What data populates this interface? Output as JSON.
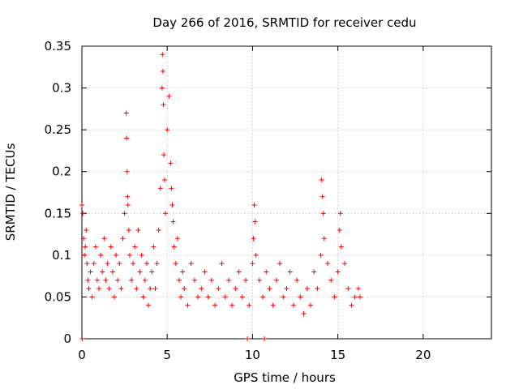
{
  "chart_data": {
    "type": "scatter",
    "title": "Day 266 of 2016, SRMTID for receiver cedu",
    "xlabel": "GPS time / hours",
    "ylabel": "SRMTID / TECUs",
    "xlim": [
      0,
      24
    ],
    "ylim": [
      0,
      0.35
    ],
    "x_ticks": [
      0,
      5,
      10,
      15,
      20
    ],
    "x_tick_labels": [
      "0",
      "5",
      "10",
      "15",
      "20"
    ],
    "y_ticks": [
      0,
      0.05,
      0.1,
      0.15,
      0.2,
      0.25,
      0.3,
      0.35
    ],
    "y_tick_labels": [
      "0",
      "0.05",
      "0.1",
      "0.15",
      "0.2",
      "0.25",
      "0.3",
      "0.35"
    ],
    "grid": true,
    "marker": "+",
    "series": [
      {
        "name": "SRMTID",
        "color": "#ff0000",
        "x": [
          0.0,
          0.05,
          0.1,
          0.15,
          0.2,
          0.25,
          0.3,
          0.35,
          0.4,
          0.5,
          0.6,
          0.7,
          0.8,
          0.9,
          1.0,
          1.1,
          1.2,
          1.3,
          1.4,
          1.5,
          1.6,
          1.7,
          1.8,
          1.9,
          2.0,
          2.1,
          2.2,
          2.3,
          2.4,
          2.5,
          2.6,
          2.62,
          2.65,
          2.68,
          2.7,
          2.75,
          2.8,
          2.9,
          3.0,
          3.1,
          3.2,
          3.3,
          3.4,
          3.5,
          3.6,
          3.7,
          3.8,
          3.9,
          4.0,
          4.1,
          4.2,
          4.3,
          4.4,
          4.5,
          4.6,
          4.7,
          4.72,
          4.75,
          4.78,
          4.8,
          4.85,
          4.9,
          5.0,
          5.1,
          5.2,
          5.25,
          5.3,
          5.35,
          5.4,
          5.5,
          5.6,
          5.7,
          5.8,
          5.9,
          6.0,
          6.2,
          6.4,
          6.6,
          6.8,
          7.0,
          7.2,
          7.4,
          7.6,
          7.8,
          8.0,
          8.2,
          8.4,
          8.6,
          8.8,
          9.0,
          9.2,
          9.4,
          9.6,
          9.8,
          10.0,
          10.05,
          10.1,
          10.15,
          10.2,
          10.4,
          10.6,
          10.8,
          11.0,
          11.2,
          11.4,
          11.6,
          11.8,
          12.0,
          12.2,
          12.4,
          12.6,
          12.8,
          13.0,
          13.2,
          13.4,
          13.6,
          13.8,
          14.0,
          14.05,
          14.1,
          14.15,
          14.2,
          14.4,
          14.6,
          14.8,
          15.0,
          15.1,
          15.15,
          15.2,
          15.4,
          15.6,
          15.8,
          16.0,
          16.2,
          16.3,
          0.02,
          9.7,
          10.7
        ],
        "y": [
          0.16,
          0.15,
          0.12,
          0.1,
          0.11,
          0.13,
          0.09,
          0.07,
          0.06,
          0.08,
          0.05,
          0.09,
          0.11,
          0.07,
          0.06,
          0.1,
          0.08,
          0.12,
          0.07,
          0.09,
          0.06,
          0.11,
          0.08,
          0.05,
          0.1,
          0.07,
          0.09,
          0.06,
          0.12,
          0.15,
          0.27,
          0.24,
          0.2,
          0.17,
          0.16,
          0.13,
          0.1,
          0.07,
          0.09,
          0.11,
          0.06,
          0.13,
          0.08,
          0.1,
          0.05,
          0.07,
          0.09,
          0.04,
          0.06,
          0.08,
          0.11,
          0.06,
          0.09,
          0.13,
          0.18,
          0.3,
          0.34,
          0.32,
          0.28,
          0.22,
          0.19,
          0.15,
          0.25,
          0.29,
          0.21,
          0.18,
          0.16,
          0.14,
          0.11,
          0.09,
          0.12,
          0.07,
          0.05,
          0.08,
          0.06,
          0.04,
          0.09,
          0.07,
          0.05,
          0.06,
          0.08,
          0.05,
          0.07,
          0.04,
          0.06,
          0.09,
          0.05,
          0.07,
          0.04,
          0.06,
          0.08,
          0.05,
          0.07,
          0.04,
          0.09,
          0.12,
          0.16,
          0.14,
          0.1,
          0.07,
          0.05,
          0.08,
          0.06,
          0.04,
          0.07,
          0.09,
          0.05,
          0.06,
          0.08,
          0.04,
          0.07,
          0.05,
          0.03,
          0.06,
          0.04,
          0.08,
          0.06,
          0.1,
          0.19,
          0.17,
          0.15,
          0.12,
          0.09,
          0.07,
          0.05,
          0.08,
          0.13,
          0.15,
          0.11,
          0.09,
          0.06,
          0.04,
          0.05,
          0.06,
          0.05,
          0.0,
          0.0,
          0.0
        ]
      }
    ]
  }
}
